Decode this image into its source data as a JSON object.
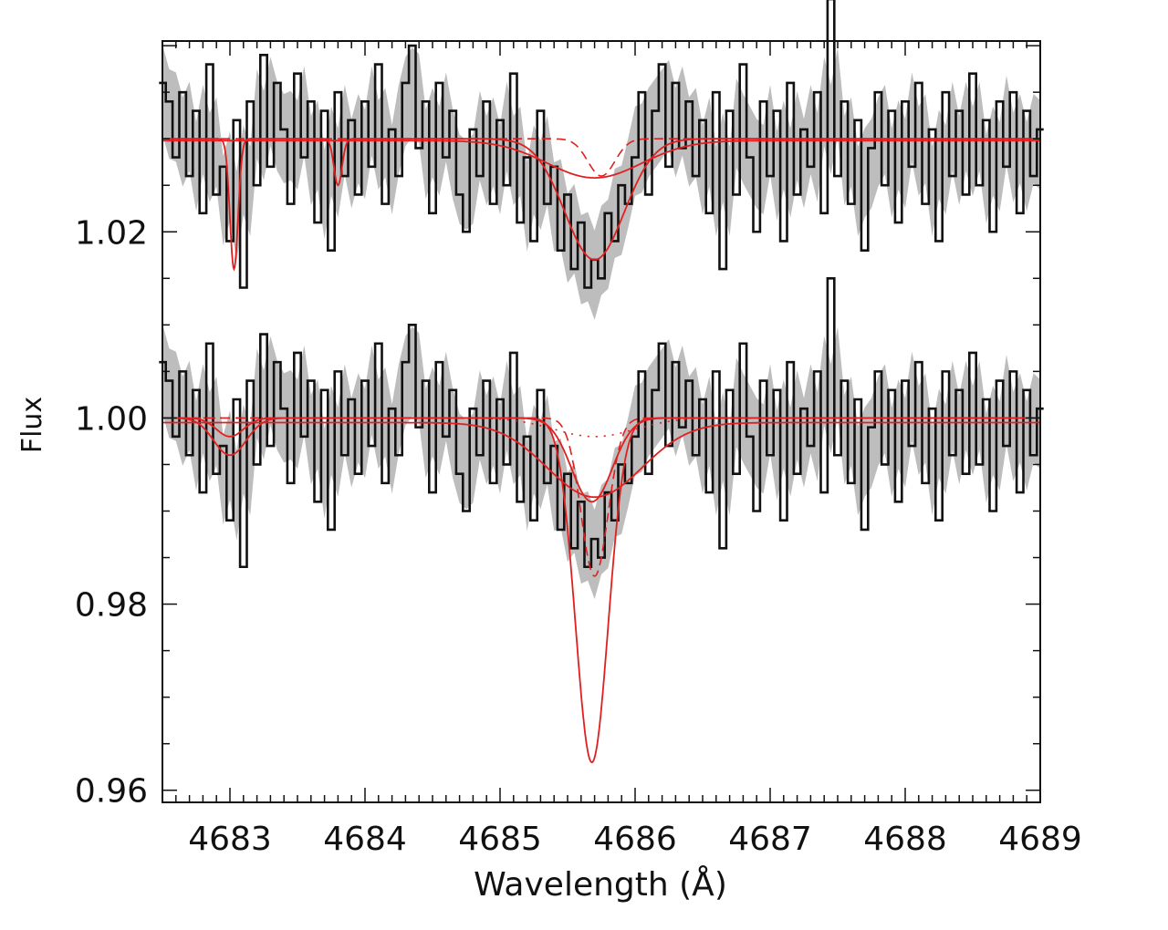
{
  "chart_data": {
    "type": "line",
    "title": "",
    "xlabel": "Wavelength (Å)",
    "ylabel": "Flux",
    "xlim": [
      4682.5,
      4689.0
    ],
    "ylim": [
      0.9587,
      1.0405
    ],
    "xticks": [
      4683,
      4684,
      4685,
      4686,
      4687,
      4688,
      4689
    ],
    "xtick_labels": [
      "4683",
      "4684",
      "4685",
      "4686",
      "4687",
      "4688",
      "4689"
    ],
    "yticks": [
      0.96,
      0.98,
      1.0,
      1.02
    ],
    "ytick_labels": [
      "0.96",
      "0.98",
      "1.00",
      "1.02"
    ],
    "x_minor_step": 0.1,
    "y_minor_step": 0.005,
    "grid": false,
    "observed": {
      "x_start": 4682.5,
      "x_step": 0.05,
      "flux": [
        1.006,
        1.004,
        0.998,
        1.005,
        0.996,
        1.003,
        0.992,
        1.008,
        0.994,
        0.997,
        0.989,
        1.002,
        0.984,
        1.004,
        0.995,
        1.009,
        0.997,
        1.006,
        1.001,
        0.993,
        1.007,
        0.998,
        1.004,
        0.991,
        1.003,
        0.988,
        1.005,
        0.996,
        1.002,
        0.994,
        1.004,
        0.997,
        1.008,
        0.993,
        1.001,
        0.996,
        1.006,
        1.01,
        0.999,
        1.004,
        0.992,
        1.006,
        0.998,
        1.003,
        0.994,
        0.99,
        1.001,
        0.996,
        1.004,
        0.993,
        1.002,
        0.995,
        1.007,
        0.991,
        0.998,
        0.989,
        1.003,
        0.993,
        0.997,
        0.988,
        0.994,
        0.986,
        0.991,
        0.984,
        0.987,
        0.985,
        0.992,
        0.989,
        0.995,
        0.993,
        0.998,
        1.005,
        0.994,
        1.003,
        1.008,
        0.997,
        1.006,
        0.999,
        1.004,
        0.996,
        1.002,
        0.992,
        1.005,
        0.986,
        1.003,
        0.994,
        1.008,
        0.998,
        0.99,
        1.004,
        0.996,
        1.003,
        0.989,
        1.006,
        0.994,
        1.001,
        0.997,
        1.005,
        0.992,
        1.015,
        0.996,
        1.004,
        0.993,
        1.002,
        0.988,
        0.999,
        1.005,
        0.995,
        1.003,
        0.991,
        1.004,
        0.997,
        1.006,
        0.993,
        1.001,
        0.989,
        1.005,
        0.996,
        1.003,
        0.994,
        1.007,
        0.995,
        1.002,
        0.99,
        1.004,
        0.997,
        1.005,
        0.992,
        1.003,
        0.996,
        1.001
      ],
      "error_band_halfwidth": 0.003,
      "offsets": [
        0.0,
        0.03
      ]
    },
    "models": [
      {
        "name": "lower-deep-line",
        "continuum": 1.0,
        "style": "solid",
        "lines": [
          {
            "center": 4685.68,
            "depth": 0.037,
            "sigma": 0.12
          },
          {
            "center": 4683.0,
            "depth": 0.004,
            "sigma": 0.12
          }
        ]
      },
      {
        "name": "lower-shallow-fit",
        "continuum": 1.0,
        "style": "solid",
        "lines": [
          {
            "center": 4685.68,
            "depth": 0.009,
            "sigma": 0.15
          },
          {
            "center": 4683.0,
            "depth": 0.002,
            "sigma": 0.1
          }
        ]
      },
      {
        "name": "lower-broad",
        "continuum": 0.9995,
        "style": "solid",
        "lines": [
          {
            "center": 4685.7,
            "depth": 0.008,
            "sigma": 0.35
          }
        ]
      },
      {
        "name": "lower-dashed",
        "continuum": 1.0,
        "style": "dashed",
        "lines": [
          {
            "center": 4685.7,
            "depth": 0.017,
            "sigma": 0.1
          }
        ]
      },
      {
        "name": "lower-dotted",
        "continuum": 1.0,
        "style": "dotted",
        "lines": [
          {
            "center": 4685.7,
            "depth": 0.002,
            "sigma": 0.3
          }
        ]
      },
      {
        "name": "upper-fit",
        "continuum": 1.03,
        "style": "solid",
        "lines": [
          {
            "center": 4683.03,
            "depth": 0.014,
            "sigma": 0.03
          },
          {
            "center": 4683.8,
            "depth": 0.005,
            "sigma": 0.03
          },
          {
            "center": 4685.7,
            "depth": 0.013,
            "sigma": 0.22
          }
        ]
      },
      {
        "name": "upper-broad",
        "continuum": 1.0298,
        "style": "solid",
        "lines": [
          {
            "center": 4685.7,
            "depth": 0.004,
            "sigma": 0.35
          }
        ]
      },
      {
        "name": "upper-dashed",
        "continuum": 1.03,
        "style": "dashed",
        "lines": [
          {
            "center": 4685.75,
            "depth": 0.004,
            "sigma": 0.1
          }
        ]
      }
    ],
    "colors": {
      "observed": "#111111",
      "band": "#bdbdbd",
      "model": "#e02020",
      "axis": "#111111"
    }
  }
}
